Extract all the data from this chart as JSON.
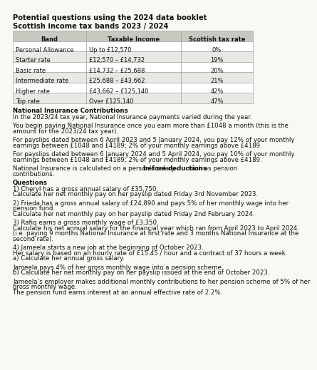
{
  "title": "Potential questions using the 2024 data booklet",
  "subtitle": "Scottish income tax bands 2023 / 2024",
  "table_headers": [
    "Band",
    "Taxable Income",
    "Scottish tax rate"
  ],
  "table_rows": [
    [
      "Personal Allowance",
      "Up to £12,570",
      "0%"
    ],
    [
      "Starter rate",
      "£12,570 – £14,732",
      "19%"
    ],
    [
      "Basic rate",
      "£14,732 – £25,688",
      "20%"
    ],
    [
      "Intermediate rate",
      "£25,688 – £43,662",
      "21%"
    ],
    [
      "Higher rate",
      "£43,662 – £125,140",
      "42%"
    ],
    [
      "Top rate",
      "Over £125,140",
      "47%"
    ]
  ],
  "ni_heading": "National Insurance Contributions",
  "ni_para1": "In the 2023/24 tax year, National Insurance payments varied during the year.",
  "ni_para2_line1": "You begin paying National Insurance once you earn more than £1048 a month (this is the",
  "ni_para2_line2": "amount for the 2023/24 tax year).",
  "ni_para3_line1": "For payslips dated between 6 April 2023 and 5 January 2024, you pay 12% of your monthly",
  "ni_para3_line2": "earnings between £1048 and £4189; 2% of your monthly earnings above £4189.",
  "ni_para4_line1": "For payslips dated between 6 January 2024 and 5 April 2024, you pay 10% of your monthly",
  "ni_para4_line2": "earnings between £1048 and £4189; 2% of your monthly earnings above £4189.",
  "ni_para5_pre": "National Insurance is calculated on a person’s salary ",
  "ni_para5_bold": "before deductions",
  "ni_para5_post": " such as pension",
  "ni_para5_line2": "contributions.",
  "q_heading": "Questions",
  "q1_line1": "1) Cheryl has a gross annual salary of £35,750.",
  "q1_line2": "Calculate her net monthly pay on her payslip dated Friday 3rd November 2023.",
  "q2_line1": "2) Frieda has a gross annual salary of £24,890 and pays 5% of her monthly wage into her",
  "q2_line2": "pension fund.",
  "q2_line3": "Calculate her net monthly pay on her payslip dated Friday 2nd February 2024.",
  "q3_line1": "3) Rafiq earns a gross monthly wage of £3,350.",
  "q3_line2": "Calculate his net annual salary for the financial year which ran from April 2023 to April 2024.",
  "q3_line3": "(i.e. paying 9 months National Insurance at first rate and 3 months National Insurance at the",
  "q3_line4": "second rate).",
  "q4_line1": "4) Jameela starts a new job at the beginning of October 2023.",
  "q4_line2": "Her salary is based on an hourly rate of £15.45 / hour and a contract of 37 hours a week.",
  "q4_line3": "a) Calculate her annual gross salary.",
  "q4_para1_line1": "Jameela pays 4% of her gross monthly wage into a pension scheme.",
  "q4_para1_line2": "b) Calculate her net monthly pay on her payslip issued at the end of October 2023.",
  "q4_para2_line1": "Jameela’s employer makes additional monthly contributions to her pension scheme of 5% of her",
  "q4_para2_line2": "gross monthly wage.",
  "q4_para2_line3": "The pension fund earns interest at an annual effective rate of 2.2%.",
  "bg_color": "#f8f8f4",
  "text_color": "#111111",
  "table_header_bg": "#c8c8c0",
  "table_row_bg_odd": "#ffffff",
  "table_row_bg_even": "#e8e8e4",
  "table_border_color": "#999999"
}
